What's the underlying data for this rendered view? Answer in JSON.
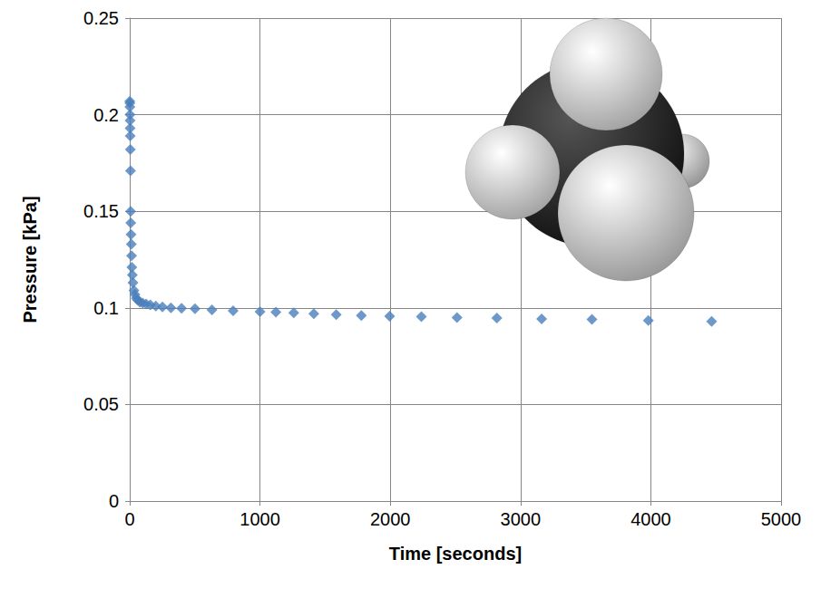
{
  "chart_data": {
    "type": "scatter",
    "x_label": "Time [seconds]",
    "y_label": "Pressure [kPa]",
    "x": [
      0.5,
      1,
      1.5,
      2,
      2.5,
      3,
      4,
      5,
      6,
      7,
      8,
      10,
      12,
      14,
      16,
      20,
      25,
      32,
      40,
      50,
      63,
      79,
      100,
      126,
      158,
      200,
      251,
      316,
      398,
      501,
      631,
      794,
      1000,
      1122,
      1259,
      1413,
      1585,
      1778,
      1995,
      2239,
      2512,
      2818,
      3162,
      3548,
      3981,
      4467
    ],
    "values": [
      0.207,
      0.206,
      0.204,
      0.2,
      0.197,
      0.193,
      0.189,
      0.182,
      0.171,
      0.15,
      0.144,
      0.138,
      0.133,
      0.127,
      0.121,
      0.117,
      0.113,
      0.109,
      0.107,
      0.105,
      0.104,
      0.103,
      0.1025,
      0.102,
      0.1015,
      0.101,
      0.1005,
      0.1,
      0.0998,
      0.0995,
      0.099,
      0.0985,
      0.098,
      0.0978,
      0.0975,
      0.097,
      0.0965,
      0.096,
      0.0957,
      0.0955,
      0.095,
      0.0948,
      0.0943,
      0.094,
      0.0935,
      0.093
    ],
    "color": "#4a7ebb",
    "marker": "diamond",
    "xlim": [
      0,
      5000
    ],
    "xticks": [
      0,
      1000,
      2000,
      3000,
      4000,
      5000
    ],
    "ylim": [
      0,
      0.25
    ],
    "yticks": [
      0,
      0.05,
      0.1,
      0.15,
      0.2,
      0.25
    ],
    "grid": true
  }
}
